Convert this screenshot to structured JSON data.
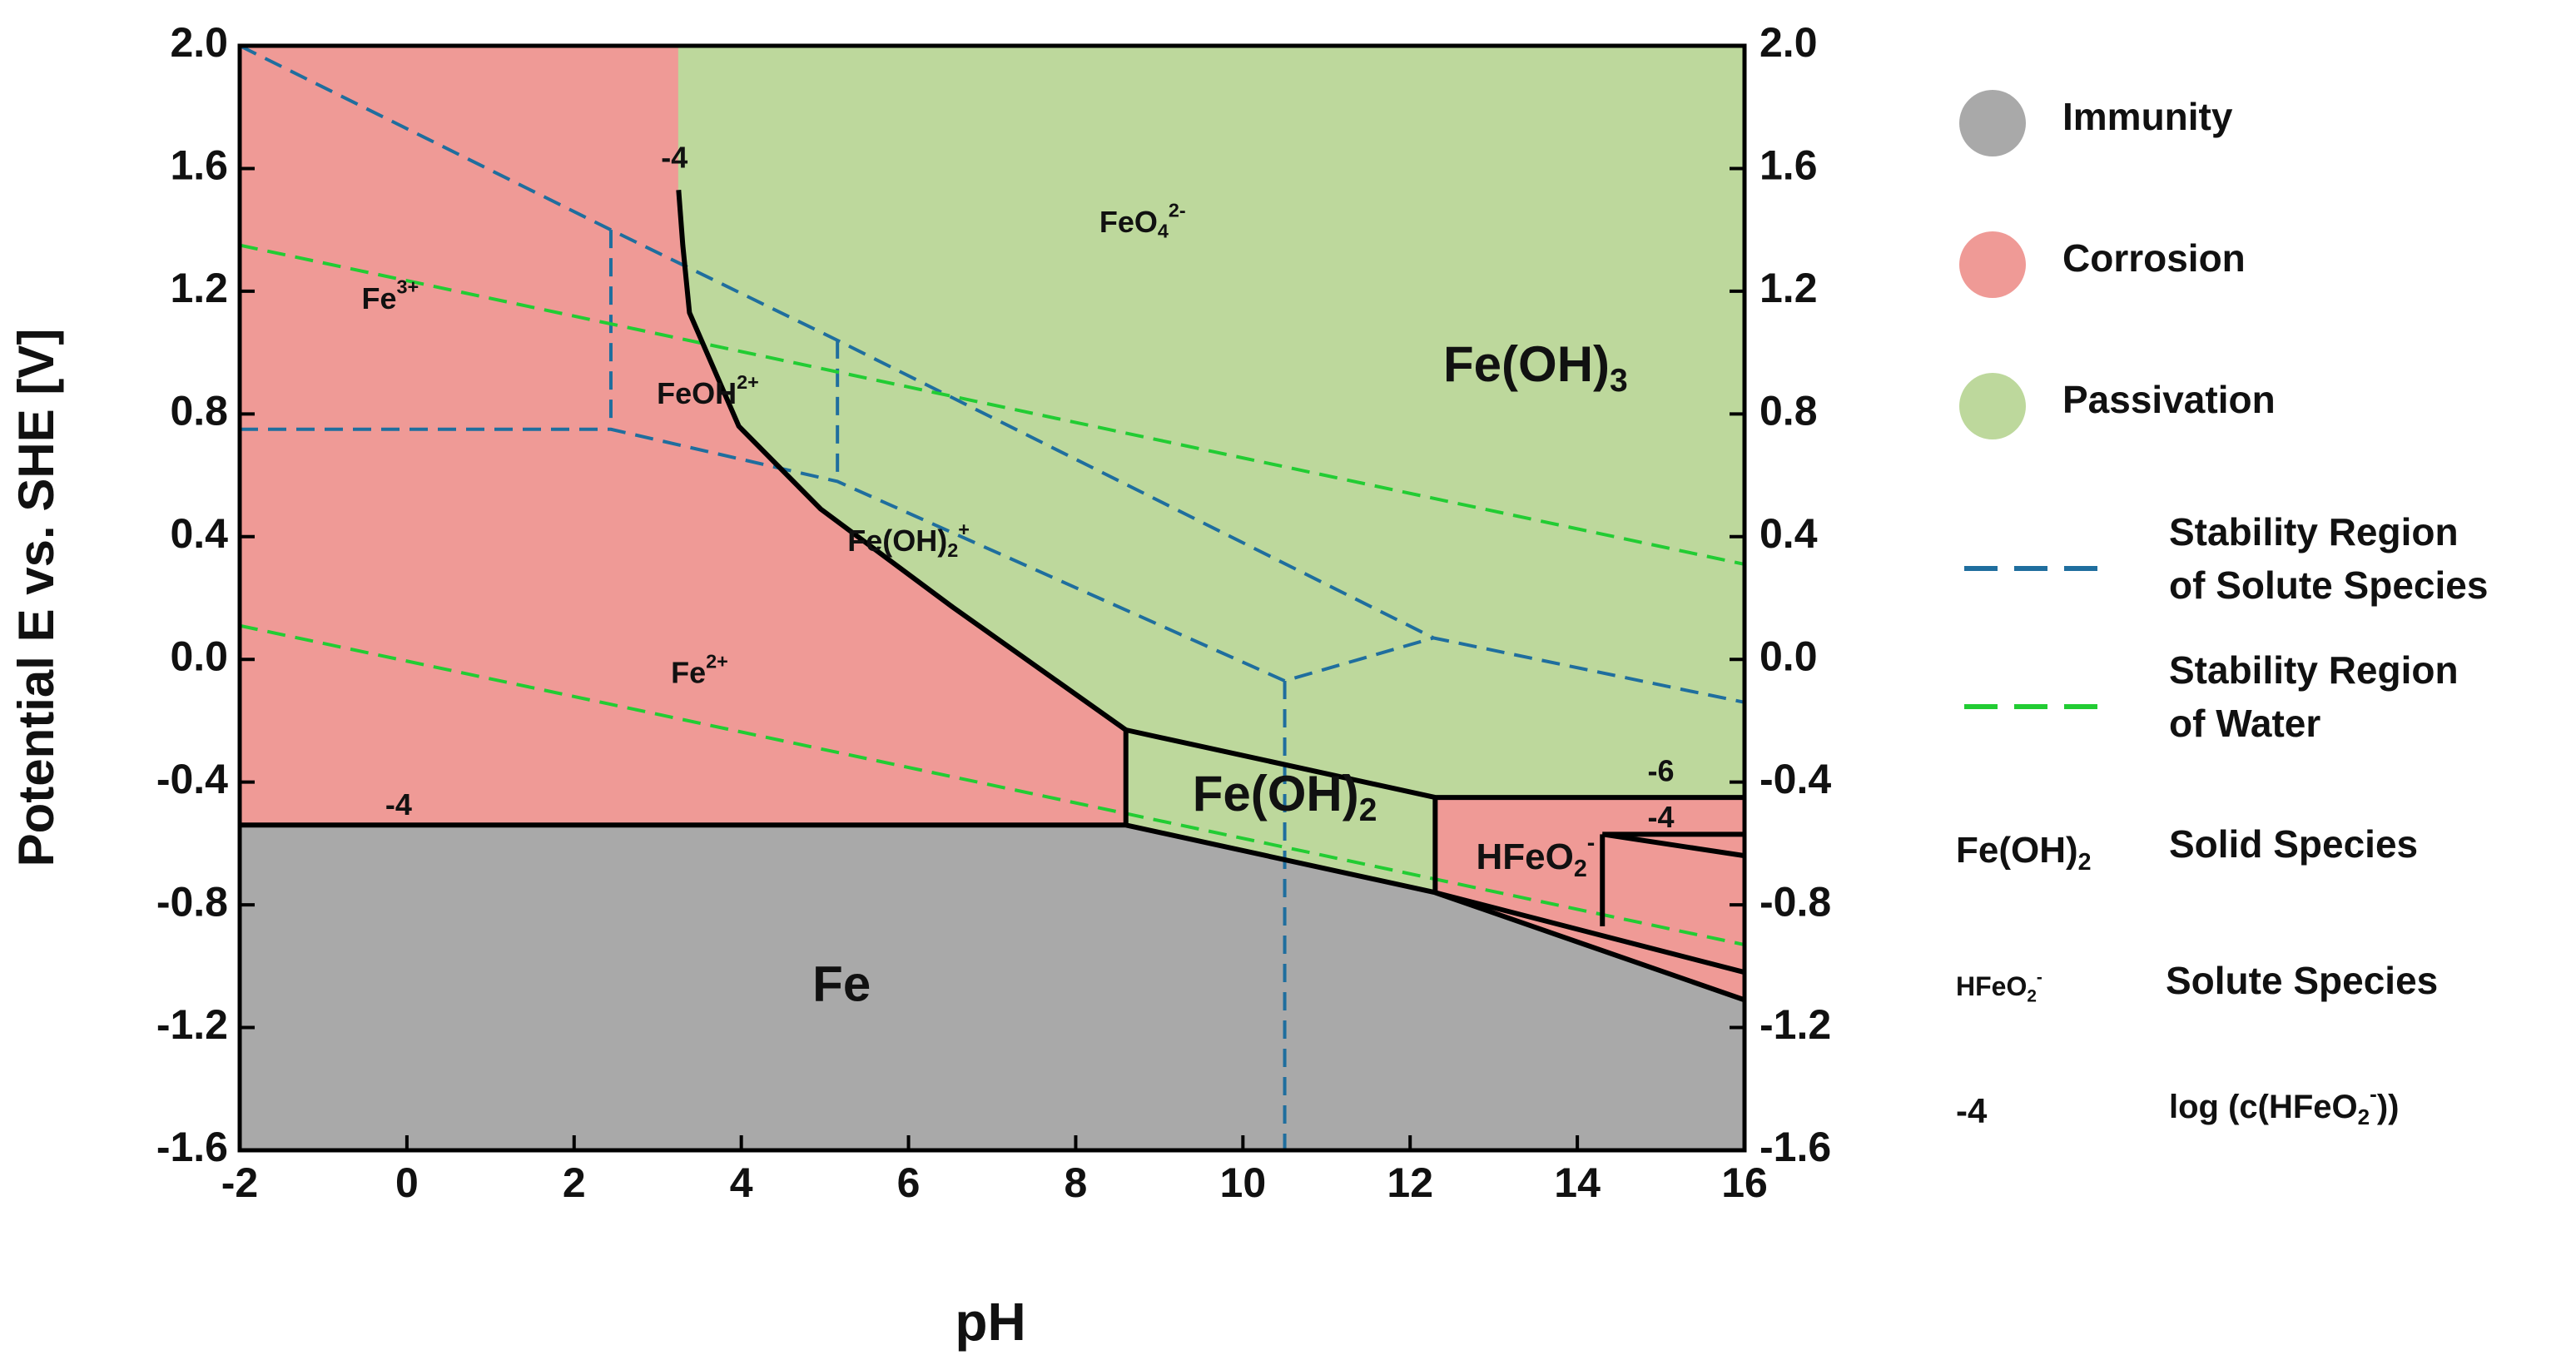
{
  "chart_data": {
    "type": "pourbaix",
    "xlabel": "pH",
    "ylabel": "Potential E vs. SHE [V]",
    "xlim": [
      -2,
      16
    ],
    "ylim": [
      -1.6,
      2.0
    ],
    "xticks": [
      -2,
      0,
      2,
      4,
      6,
      8,
      10,
      12,
      14,
      16
    ],
    "yticks": [
      {
        "value": -1.6,
        "label": "-1.6"
      },
      {
        "value": -1.2,
        "label": "-1.2"
      },
      {
        "value": -0.8,
        "label": "-0.8"
      },
      {
        "value": -0.4,
        "label": "-0.4"
      },
      {
        "value": 0,
        "label": "0.0"
      },
      {
        "value": 0.4,
        "label": "0.4"
      },
      {
        "value": 0.8,
        "label": "0.8"
      },
      {
        "value": 1.2,
        "label": "1.2"
      },
      {
        "value": 1.6,
        "label": "1.6"
      },
      {
        "value": 2,
        "label": "2.0"
      }
    ],
    "y2lim": [
      -1.6,
      2.0
    ],
    "y2ticks": [
      {
        "value": -1.6,
        "label": "-1.6"
      },
      {
        "value": -1.2,
        "label": "-1.2"
      },
      {
        "value": -0.8,
        "label": "-0.8"
      },
      {
        "value": -0.4,
        "label": "-0.4"
      },
      {
        "value": 0,
        "label": "0.0"
      },
      {
        "value": 0.4,
        "label": "0.4"
      },
      {
        "value": 0.8,
        "label": "0.8"
      },
      {
        "value": 1.2,
        "label": "1.2"
      },
      {
        "value": 1.6,
        "label": "1.6"
      },
      {
        "value": 2,
        "label": "2.0"
      }
    ],
    "phases": [
      {
        "name": "Immunity",
        "color": "#a9a9a9",
        "areas": [
          {
            "x": [
              -2,
              -2,
              8.6,
              12.3,
              16,
              16
            ],
            "y": [
              -1.6,
              -0.54,
              -0.54,
              -0.76,
              -1.11,
              -1.6
            ]
          }
        ]
      },
      {
        "name": "Corrosion",
        "color": "#ef9a96",
        "areas": [
          {
            "x": [
              -2,
              3.25,
              3.25,
              3.3,
              3.38,
              3.97,
              4.95,
              6.53,
              8.6,
              8.6,
              -2
            ],
            "y": [
              2,
              2,
              1.53,
              1.35,
              1.13,
              0.76,
              0.49,
              0.17,
              -0.23,
              -0.54,
              -0.54
            ]
          },
          {
            "x": [
              12.3,
              16,
              16,
              12.3
            ],
            "y": [
              -0.45,
              -0.45,
              -1.11,
              -0.76
            ]
          }
        ]
      },
      {
        "name": "Passivation",
        "color": "#bdd89c",
        "areas": [
          {
            "x": [
              3.25,
              16,
              16,
              12.3,
              8.6,
              6.53,
              4.95,
              3.97,
              3.38,
              3.3,
              3.25
            ],
            "y": [
              2,
              2,
              -0.45,
              -0.45,
              -0.23,
              0.17,
              0.49,
              0.76,
              1.13,
              1.35,
              1.53
            ]
          },
          {
            "x": [
              8.6,
              12.3,
              12.3,
              8.6
            ],
            "y": [
              -0.23,
              -0.45,
              -0.76,
              -0.54
            ]
          }
        ]
      }
    ],
    "lines": [
      {
        "name_lines": [
          "Stability Region",
          "of Solute Species"
        ],
        "color": "#1f6e9e",
        "paths": [
          {
            "x": [
              -2,
              2.44,
              5.15,
              12.28,
              16
            ],
            "y": [
              2,
              1.4,
              1.04,
              0.07,
              -0.14
            ]
          },
          {
            "x": [
              -2,
              2.44,
              5.15,
              10.5,
              12.28
            ],
            "y": [
              0.75,
              0.75,
              0.58,
              -0.07,
              0.07
            ]
          },
          {
            "x": [
              2.44,
              2.44
            ],
            "y": [
              1.4,
              0.75
            ]
          },
          {
            "x": [
              5.15,
              5.15
            ],
            "y": [
              1.04,
              0.58
            ]
          },
          {
            "x": [
              10.5,
              10.5
            ],
            "y": [
              -0.07,
              -1.6
            ]
          }
        ]
      },
      {
        "name_lines": [
          "Stability Region",
          "of Water"
        ],
        "color": "#22cc33",
        "paths": [
          {
            "x": [
              -2,
              16
            ],
            "y": [
              1.35,
              0.31
            ]
          },
          {
            "x": [
              -2,
              16
            ],
            "y": [
              0.11,
              -0.93
            ]
          }
        ]
      }
    ],
    "boundaries": [
      {
        "x": [
          3.25,
          3.3,
          3.38,
          3.97,
          4.95,
          6.53,
          8.6
        ],
        "y": [
          1.53,
          1.35,
          1.13,
          0.76,
          0.49,
          0.17,
          -0.23
        ]
      },
      {
        "x": [
          8.6,
          12.3,
          16
        ],
        "y": [
          -0.23,
          -0.45,
          -0.45
        ]
      },
      {
        "x": [
          8.6,
          8.6
        ],
        "y": [
          -0.23,
          -0.54
        ]
      },
      {
        "x": [
          -2,
          8.6,
          12.3,
          16
        ],
        "y": [
          -0.54,
          -0.54,
          -0.76,
          -1.11
        ]
      },
      {
        "x": [
          12.3,
          12.3
        ],
        "y": [
          -0.45,
          -0.76
        ]
      },
      {
        "x": [
          14.3,
          16
        ],
        "y": [
          -0.57,
          -0.57
        ]
      },
      {
        "x": [
          14.3,
          16
        ],
        "y": [
          -0.57,
          -0.64
        ]
      },
      {
        "x": [
          14.3,
          14.3
        ],
        "y": [
          -0.57,
          -0.87
        ]
      },
      {
        "x": [
          12.3,
          16
        ],
        "y": [
          -0.76,
          -1.02
        ]
      }
    ],
    "labels": [
      {
        "x": -0.2,
        "y": 1.17,
        "size": "small",
        "parts": [
          {
            "text": "Fe"
          },
          {
            "text": "3+",
            "shift": "sup"
          }
        ]
      },
      {
        "x": 3.6,
        "y": 0.86,
        "size": "small",
        "parts": [
          {
            "text": "FeOH"
          },
          {
            "text": "2+",
            "shift": "sup"
          }
        ]
      },
      {
        "x": 8.8,
        "y": 1.42,
        "size": "small",
        "parts": [
          {
            "text": "FeO"
          },
          {
            "text": "4",
            "shift": "sub"
          },
          {
            "text": "2-",
            "shift": "sup"
          }
        ]
      },
      {
        "x": 13.5,
        "y": 0.95,
        "size": "large",
        "parts": [
          {
            "text": "Fe(OH)"
          },
          {
            "text": "3",
            "shift": "sub"
          }
        ]
      },
      {
        "x": 6.0,
        "y": 0.38,
        "size": "small",
        "parts": [
          {
            "text": "Fe(OH)"
          },
          {
            "text": "2",
            "shift": "sub"
          },
          {
            "text": "+",
            "shift": "sup"
          }
        ]
      },
      {
        "x": 3.5,
        "y": -0.05,
        "size": "small",
        "parts": [
          {
            "text": "Fe"
          },
          {
            "text": "2+",
            "shift": "sup"
          }
        ]
      },
      {
        "x": 10.5,
        "y": -0.45,
        "size": "large",
        "parts": [
          {
            "text": "Fe(OH)"
          },
          {
            "text": "2",
            "shift": "sub"
          }
        ]
      },
      {
        "x": 13.5,
        "y": -0.65,
        "size": "medium",
        "parts": [
          {
            "text": "HFeO"
          },
          {
            "text": "2",
            "shift": "sub"
          },
          {
            "text": "-",
            "shift": "sup"
          }
        ]
      },
      {
        "x": 5.2,
        "y": -1.07,
        "size": "large",
        "parts": [
          {
            "text": "Fe"
          }
        ]
      },
      {
        "x": 3.2,
        "y": 1.63,
        "size": "small",
        "parts": [
          {
            "text": "-4"
          }
        ]
      },
      {
        "x": -0.1,
        "y": -0.48,
        "size": "small",
        "parts": [
          {
            "text": "-4"
          }
        ]
      },
      {
        "x": 15.0,
        "y": -0.37,
        "size": "small",
        "parts": [
          {
            "text": "-6"
          }
        ]
      },
      {
        "x": 15.0,
        "y": -0.52,
        "size": "small",
        "parts": [
          {
            "text": "-4"
          }
        ]
      }
    ],
    "key": [
      {
        "symbol": [
          {
            "text": "Fe(OH)"
          },
          {
            "text": "2",
            "shift": "sub"
          }
        ],
        "text": [
          {
            "text": "Solid Species"
          }
        ]
      },
      {
        "symbol": [
          {
            "text": "HFeO"
          },
          {
            "text": "2",
            "shift": "sub"
          },
          {
            "text": "-",
            "shift": "sup"
          }
        ],
        "text": [
          {
            "text": "Solute Species"
          }
        ]
      },
      {
        "symbol": [
          {
            "text": "-4"
          }
        ],
        "text": [
          {
            "text": "log (c(HFeO"
          },
          {
            "text": "2",
            "shift": "sub"
          },
          {
            "text": "-",
            "shift": "sup"
          },
          {
            "text": "))"
          }
        ]
      }
    ]
  }
}
